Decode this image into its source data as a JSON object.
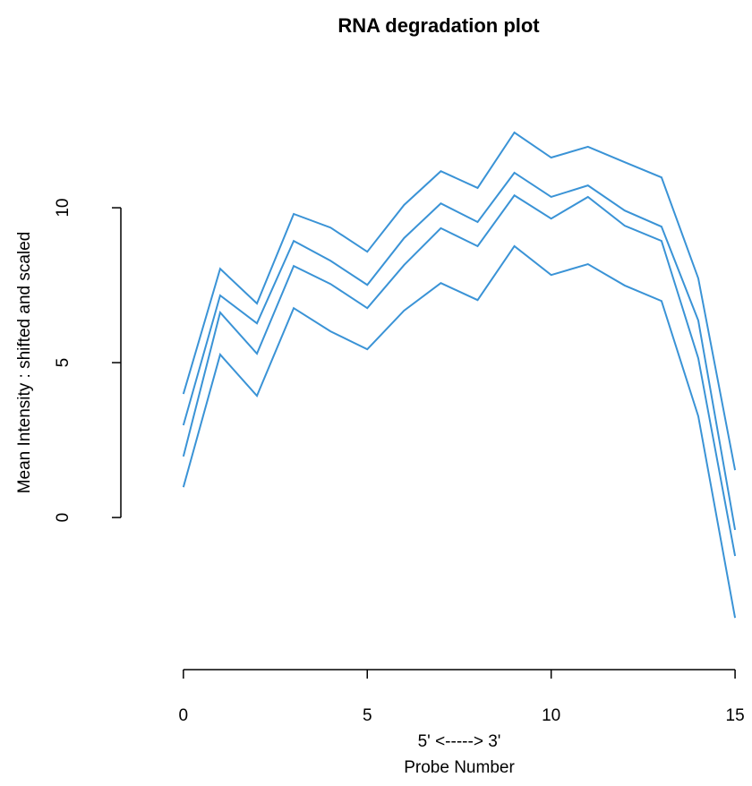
{
  "chart_data": {
    "type": "line",
    "title": "RNA degradation plot",
    "x_label_top": "5' <-----> 3'",
    "x_label": "Probe Number",
    "y_label": "Mean Intensity : shifted and scaled",
    "x": [
      0,
      1,
      2,
      3,
      4,
      5,
      6,
      7,
      8,
      9,
      10,
      11,
      12,
      13,
      14,
      15
    ],
    "color": "#3a93d6",
    "series": [
      {
        "values": [
          0.98,
          5.26,
          3.93,
          6.76,
          6.01,
          5.43,
          6.68,
          7.57,
          7.02,
          8.76,
          7.83,
          8.18,
          7.49,
          6.99,
          3.27,
          -3.24
        ]
      },
      {
        "values": [
          1.97,
          6.62,
          5.29,
          8.12,
          7.54,
          6.76,
          8.15,
          9.34,
          8.76,
          10.4,
          9.65,
          10.35,
          9.42,
          8.93,
          5.14,
          -1.24
        ]
      },
      {
        "values": [
          2.98,
          7.17,
          6.27,
          8.93,
          8.29,
          7.51,
          9.02,
          10.14,
          9.54,
          11.13,
          10.35,
          10.72,
          9.91,
          9.39,
          6.36,
          -0.4
        ]
      },
      {
        "values": [
          3.99,
          8.03,
          6.91,
          9.8,
          9.36,
          8.58,
          10.09,
          11.18,
          10.64,
          12.43,
          11.62,
          11.97,
          11.47,
          10.98,
          7.72,
          1.53
        ]
      }
    ],
    "xlim": [
      -1.7,
      15.29
    ],
    "ylim": [
      -4.91,
      13.47
    ],
    "xticks": [
      0,
      5,
      10,
      15
    ],
    "yticks": [
      0,
      5,
      10
    ]
  }
}
